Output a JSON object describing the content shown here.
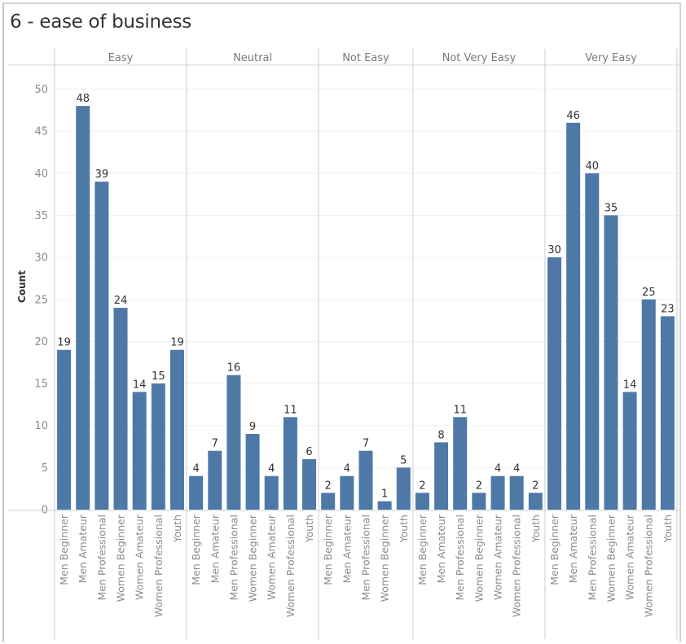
{
  "chart_data": {
    "type": "bar",
    "title": "6 - ease of business",
    "xlabel": "",
    "ylabel": "Count",
    "ylim": [
      0,
      52
    ],
    "yticks": [
      0,
      5,
      10,
      15,
      20,
      25,
      30,
      35,
      40,
      45,
      50
    ],
    "grid": true,
    "bar_color": "#4e79a7",
    "groups": [
      {
        "name": "Easy",
        "categories": [
          "Men Beginner",
          "Men Amateur",
          "Men Professional",
          "Women Beginner",
          "Women Amateur",
          "Women Professional",
          "Youth"
        ],
        "values": [
          19,
          48,
          39,
          24,
          14,
          15,
          19
        ]
      },
      {
        "name": "Neutral",
        "categories": [
          "Men Beginner",
          "Men Amateur",
          "Men Professional",
          "Women Beginner",
          "Women Amateur",
          "Women Professional",
          "Youth"
        ],
        "values": [
          4,
          7,
          16,
          9,
          4,
          11,
          6
        ]
      },
      {
        "name": "Not Easy",
        "categories": [
          "Men Beginner",
          "Men Amateur",
          "Men Professional",
          "Women Beginner",
          "Youth"
        ],
        "values": [
          2,
          4,
          7,
          1,
          5
        ]
      },
      {
        "name": "Not Very Easy",
        "categories": [
          "Men Beginner",
          "Men Amateur",
          "Men Professional",
          "Women Beginner",
          "Women Amateur",
          "Women Professional",
          "Youth"
        ],
        "values": [
          2,
          8,
          11,
          2,
          4,
          4,
          2
        ]
      },
      {
        "name": "Very Easy",
        "categories": [
          "Men Beginner",
          "Men Amateur",
          "Men Professional",
          "Women Beginner",
          "Women Amateur",
          "Women Professional",
          "Youth"
        ],
        "values": [
          30,
          46,
          40,
          35,
          14,
          25,
          23
        ]
      }
    ]
  }
}
